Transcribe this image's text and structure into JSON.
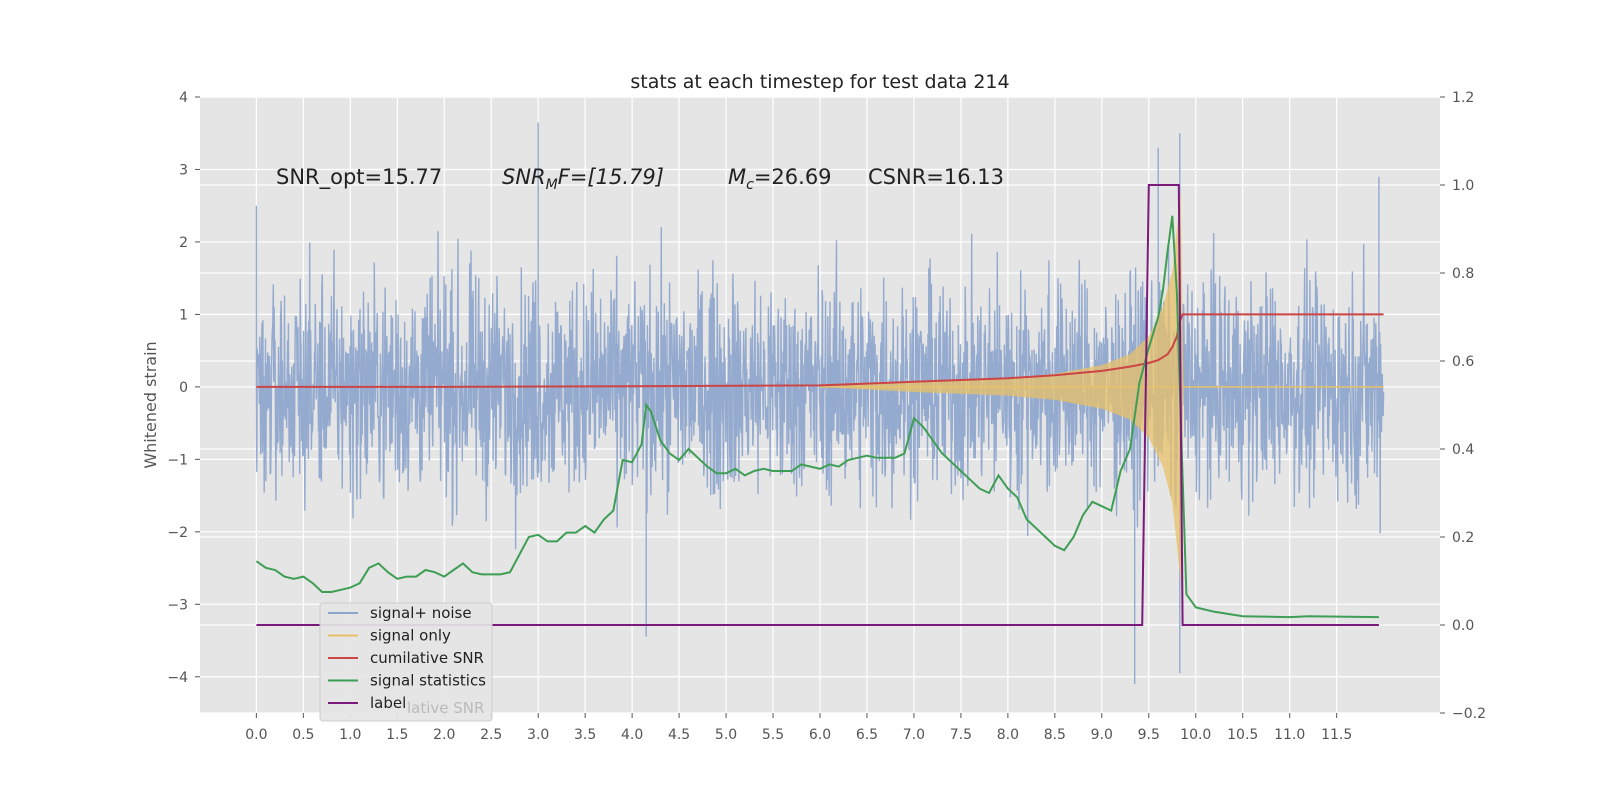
{
  "chart_data": {
    "type": "line",
    "title": "stats at each timestep for test data 214",
    "ylabel": "Whitened strain",
    "ylabel_right": "",
    "xlim": [
      -0.6,
      12.6
    ],
    "ylim": [
      -4.5,
      4
    ],
    "ylim_right": [
      -0.2,
      1.2
    ],
    "x_ticks": [
      0.0,
      0.5,
      1.0,
      1.5,
      2.0,
      2.5,
      3.0,
      3.5,
      4.0,
      4.5,
      5.0,
      5.5,
      6.0,
      6.5,
      7.0,
      7.5,
      8.0,
      8.5,
      9.0,
      9.5,
      10.0,
      10.5,
      11.0,
      11.5
    ],
    "x_tick_labels": [
      "0.0",
      "0.5",
      "1.0",
      "1.5",
      "2.0",
      "2.5",
      "3.0",
      "3.5",
      "4.0",
      "4.5",
      "5.0",
      "5.5",
      "6.0",
      "6.5",
      "7.0",
      "7.5",
      "8.0",
      "8.5",
      "9.0",
      "9.5",
      "10.0",
      "10.5",
      "11.0",
      "11.5"
    ],
    "y_ticks": [
      -4,
      -3,
      -2,
      -1,
      0,
      1,
      2,
      3,
      4
    ],
    "y_tick_labels": [
      "−4",
      "−3",
      "−2",
      "−1",
      "0",
      "1",
      "2",
      "3",
      "4"
    ],
    "y_ticks_right": [
      -0.2,
      0.0,
      0.2,
      0.4,
      0.6,
      0.8,
      1.0,
      1.2
    ],
    "y_tick_labels_right": [
      "−0.2",
      "0.0",
      "0.2",
      "0.4",
      "0.6",
      "0.8",
      "1.0",
      "1.2"
    ],
    "grid": true,
    "legend_position": "lower-left",
    "annotations": {
      "snr_opt": "SNR_opt=15.77",
      "snr_mf_main": "SNR",
      "snr_mf_sub": "M",
      "snr_mf_rest": "F=[15.79]",
      "mc_main": "M",
      "mc_sub": "c",
      "mc_rest": "=26.69",
      "csnr": "CSNR=16.13"
    },
    "series": [
      {
        "name": "signal+ noise",
        "color": "#8fa6cc",
        "axis": "left",
        "x_range": [
          0.0,
          12.0
        ],
        "amplitude_band": [
          -2.0,
          2.0
        ],
        "peak_values": [
          [
            0.0,
            2.5
          ],
          [
            3.0,
            3.65
          ],
          [
            4.15,
            -3.45
          ],
          [
            9.35,
            -4.1
          ],
          [
            9.6,
            3.3
          ],
          [
            9.83,
            3.5
          ],
          [
            9.83,
            -3.95
          ],
          [
            11.95,
            2.9
          ]
        ]
      },
      {
        "name": "signal only",
        "color": "#e8c068",
        "axis": "left",
        "envelope": [
          [
            6.0,
            0.0
          ],
          [
            7.0,
            0.07
          ],
          [
            8.0,
            0.12
          ],
          [
            8.5,
            0.18
          ],
          [
            9.0,
            0.3
          ],
          [
            9.3,
            0.45
          ],
          [
            9.5,
            0.7
          ],
          [
            9.65,
            1.1
          ],
          [
            9.75,
            1.6
          ],
          [
            9.8,
            2.2
          ],
          [
            9.84,
            2.7
          ],
          [
            9.87,
            0.0
          ],
          [
            12.0,
            0.0
          ]
        ]
      },
      {
        "name": "cumilative SNR",
        "color": "#cc4444",
        "axis": "left",
        "x": [
          0.0,
          2.0,
          4.0,
          6.0,
          7.0,
          8.0,
          8.5,
          9.0,
          9.3,
          9.5,
          9.6,
          9.7,
          9.75,
          9.8,
          9.83,
          9.86,
          12.0
        ],
        "values": [
          0.0,
          0.0,
          0.01,
          0.02,
          0.07,
          0.12,
          0.16,
          0.22,
          0.28,
          0.33,
          0.37,
          0.45,
          0.55,
          0.7,
          0.9,
          1.0,
          1.0
        ]
      },
      {
        "name": "signal statistics",
        "color": "#3f9e55",
        "axis": "right",
        "x": [
          0.0,
          0.1,
          0.2,
          0.3,
          0.4,
          0.5,
          0.6,
          0.7,
          0.8,
          0.9,
          1.0,
          1.1,
          1.2,
          1.3,
          1.4,
          1.5,
          1.6,
          1.7,
          1.8,
          1.9,
          2.0,
          2.1,
          2.2,
          2.3,
          2.4,
          2.5,
          2.6,
          2.7,
          2.8,
          2.9,
          3.0,
          3.1,
          3.2,
          3.3,
          3.4,
          3.5,
          3.6,
          3.7,
          3.8,
          3.9,
          4.0,
          4.1,
          4.15,
          4.2,
          4.3,
          4.4,
          4.5,
          4.6,
          4.7,
          4.8,
          4.9,
          5.0,
          5.1,
          5.2,
          5.3,
          5.4,
          5.5,
          5.6,
          5.7,
          5.8,
          5.9,
          6.0,
          6.1,
          6.2,
          6.3,
          6.4,
          6.5,
          6.6,
          6.7,
          6.8,
          6.9,
          7.0,
          7.1,
          7.2,
          7.3,
          7.4,
          7.5,
          7.6,
          7.7,
          7.8,
          7.9,
          8.0,
          8.1,
          8.2,
          8.3,
          8.4,
          8.5,
          8.6,
          8.7,
          8.8,
          8.9,
          9.0,
          9.1,
          9.2,
          9.3,
          9.4,
          9.5,
          9.6,
          9.65,
          9.7,
          9.75,
          9.8,
          9.85,
          9.9,
          10.0,
          10.1,
          10.2,
          10.5,
          11.0,
          11.2,
          11.95
        ],
        "values": [
          0.145,
          0.13,
          0.125,
          0.11,
          0.105,
          0.11,
          0.095,
          0.075,
          0.075,
          0.08,
          0.085,
          0.095,
          0.13,
          0.14,
          0.12,
          0.105,
          0.11,
          0.11,
          0.125,
          0.12,
          0.11,
          0.125,
          0.14,
          0.12,
          0.115,
          0.115,
          0.115,
          0.12,
          0.16,
          0.2,
          0.205,
          0.19,
          0.19,
          0.21,
          0.21,
          0.225,
          0.21,
          0.24,
          0.26,
          0.375,
          0.37,
          0.41,
          0.5,
          0.485,
          0.42,
          0.39,
          0.375,
          0.4,
          0.38,
          0.36,
          0.345,
          0.345,
          0.355,
          0.34,
          0.35,
          0.355,
          0.35,
          0.35,
          0.35,
          0.365,
          0.36,
          0.355,
          0.365,
          0.36,
          0.375,
          0.38,
          0.385,
          0.38,
          0.38,
          0.38,
          0.39,
          0.47,
          0.45,
          0.42,
          0.39,
          0.37,
          0.35,
          0.33,
          0.31,
          0.3,
          0.34,
          0.31,
          0.29,
          0.24,
          0.22,
          0.2,
          0.18,
          0.17,
          0.2,
          0.25,
          0.28,
          0.27,
          0.26,
          0.35,
          0.4,
          0.55,
          0.63,
          0.7,
          0.76,
          0.85,
          0.93,
          0.75,
          0.4,
          0.07,
          0.04,
          0.035,
          0.03,
          0.02,
          0.018,
          0.02,
          0.018
        ]
      },
      {
        "name": "label",
        "color": "#7a1a7a",
        "axis": "right",
        "x": [
          0.0,
          9.43,
          9.5,
          9.82,
          9.86,
          11.95
        ],
        "values": [
          0.0,
          0.0,
          1.0,
          1.0,
          0.0,
          0.0
        ]
      }
    ],
    "legend_overlap_text": "lative SNR"
  }
}
